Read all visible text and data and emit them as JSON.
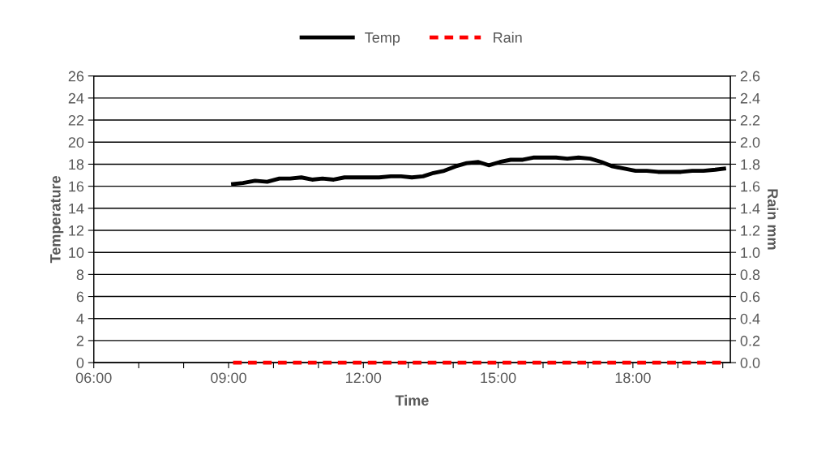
{
  "chart_data": {
    "type": "line",
    "xlabel": "Time",
    "ylabel": "Temperature",
    "y2label": "Rain mm",
    "x": [
      9.1,
      9.32,
      9.59,
      9.86,
      10.13,
      10.37,
      10.62,
      10.86,
      11.09,
      11.34,
      11.58,
      11.85,
      12.12,
      12.35,
      12.61,
      12.84,
      13.08,
      13.33,
      13.56,
      13.8,
      14.05,
      14.3,
      14.56,
      14.79,
      15.04,
      15.28,
      15.55,
      15.78,
      16.04,
      16.29,
      16.54,
      16.79,
      17.05,
      17.3,
      17.55,
      17.81,
      18.06,
      18.31,
      18.56,
      18.82,
      19.07,
      19.32,
      19.57,
      19.83,
      20.03
    ],
    "series": [
      {
        "name": "Temp",
        "color": "#000000",
        "line_style": "solid",
        "values": [
          16.2,
          16.3,
          16.5,
          16.4,
          16.7,
          16.7,
          16.8,
          16.6,
          16.7,
          16.6,
          16.8,
          16.8,
          16.8,
          16.8,
          16.9,
          16.9,
          16.8,
          16.9,
          17.2,
          17.4,
          17.8,
          18.1,
          18.2,
          17.9,
          18.2,
          18.4,
          18.4,
          18.6,
          18.6,
          18.6,
          18.5,
          18.6,
          18.5,
          18.2,
          17.8,
          17.6,
          17.4,
          17.4,
          17.3,
          17.3,
          17.3,
          17.4,
          17.4,
          17.5,
          17.6
        ]
      },
      {
        "name": "Rain",
        "color": "#ff0000",
        "line_style": "dashed",
        "axis": "y2",
        "values": [
          0,
          0,
          0,
          0,
          0,
          0,
          0,
          0,
          0,
          0,
          0,
          0,
          0,
          0,
          0,
          0,
          0,
          0,
          0,
          0,
          0,
          0,
          0,
          0,
          0,
          0,
          0,
          0,
          0,
          0,
          0,
          0,
          0,
          0,
          0,
          0,
          0,
          0,
          0,
          0,
          0,
          0,
          0,
          0,
          0
        ]
      }
    ],
    "xlim": [
      6,
      20.17
    ],
    "xticks": [
      {
        "value": 6,
        "label": "06:00"
      },
      {
        "value": 7,
        "label": null
      },
      {
        "value": 8,
        "label": null
      },
      {
        "value": 9,
        "label": "09:00"
      },
      {
        "value": 10,
        "label": null
      },
      {
        "value": 11,
        "label": null
      },
      {
        "value": 12,
        "label": "12:00"
      },
      {
        "value": 13,
        "label": null
      },
      {
        "value": 14,
        "label": null
      },
      {
        "value": 15,
        "label": "15:00"
      },
      {
        "value": 16,
        "label": null
      },
      {
        "value": 17,
        "label": null
      },
      {
        "value": 18,
        "label": "18:00"
      },
      {
        "value": 19,
        "label": null
      },
      {
        "value": 20,
        "label": null
      }
    ],
    "ylim": [
      0,
      26
    ],
    "yticks": [
      0,
      2,
      4,
      6,
      8,
      10,
      12,
      14,
      16,
      18,
      20,
      22,
      24,
      26
    ],
    "y2lim": [
      0,
      2.6
    ],
    "y2ticks": [
      {
        "value": 0,
        "label": "0.0"
      },
      {
        "value": 0.2,
        "label": "0.2"
      },
      {
        "value": 0.4,
        "label": "0.4"
      },
      {
        "value": 0.6,
        "label": "0.6"
      },
      {
        "value": 0.8,
        "label": "0.8"
      },
      {
        "value": 1,
        "label": "1.0"
      },
      {
        "value": 1.2,
        "label": "1.2"
      },
      {
        "value": 1.4,
        "label": "1.4"
      },
      {
        "value": 1.6,
        "label": "1.6"
      },
      {
        "value": 1.8,
        "label": "1.8"
      },
      {
        "value": 2,
        "label": "2.0"
      },
      {
        "value": 2.2,
        "label": "2.2"
      },
      {
        "value": 2.4,
        "label": "2.4"
      },
      {
        "value": 2.6,
        "label": "2.6"
      }
    ],
    "grid": "y",
    "legend": "top",
    "marker": "none"
  }
}
